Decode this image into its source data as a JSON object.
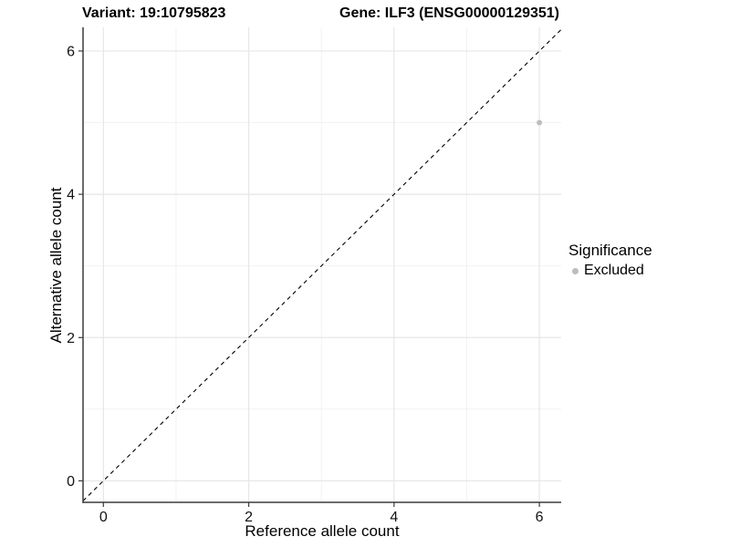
{
  "figure": {
    "background": "#ffffff",
    "title_left": "Variant: 19:10795823",
    "title_right": "Gene: ILF3 (ENSG00000129351)"
  },
  "chart_data": {
    "type": "scatter",
    "title_left": "Variant: 19:10795823",
    "title_right": "Gene: ILF3 (ENSG00000129351)",
    "xlabel": "Reference allele count",
    "ylabel": "Alternative allele count",
    "xticks": [
      0,
      2,
      4,
      6
    ],
    "yticks": [
      0,
      2,
      4,
      6
    ],
    "minor_xticks": [
      1,
      3,
      5
    ],
    "minor_yticks": [
      1,
      3,
      5
    ],
    "xlim": [
      -0.28,
      6.3
    ],
    "ylim": [
      -0.3,
      6.33
    ],
    "grid": true,
    "points": [
      {
        "x": 6,
        "y": 5,
        "series": "Excluded"
      }
    ],
    "abline": {
      "slope": 1,
      "intercept": 0,
      "style": "dashed",
      "color": "#000000"
    },
    "legend": {
      "title": "Significance",
      "position": "right",
      "items": [
        {
          "label": "Excluded",
          "color": "#bdbdbd"
        }
      ]
    },
    "colors": {
      "point": "#bebebe",
      "grid_major": "#e6e6e6",
      "grid_minor": "#f1f1f1",
      "axis_line": "#3c3c3c",
      "tick_mark": "#3c3c3c",
      "tick_label": "#111111",
      "background": "#ffffff"
    }
  }
}
